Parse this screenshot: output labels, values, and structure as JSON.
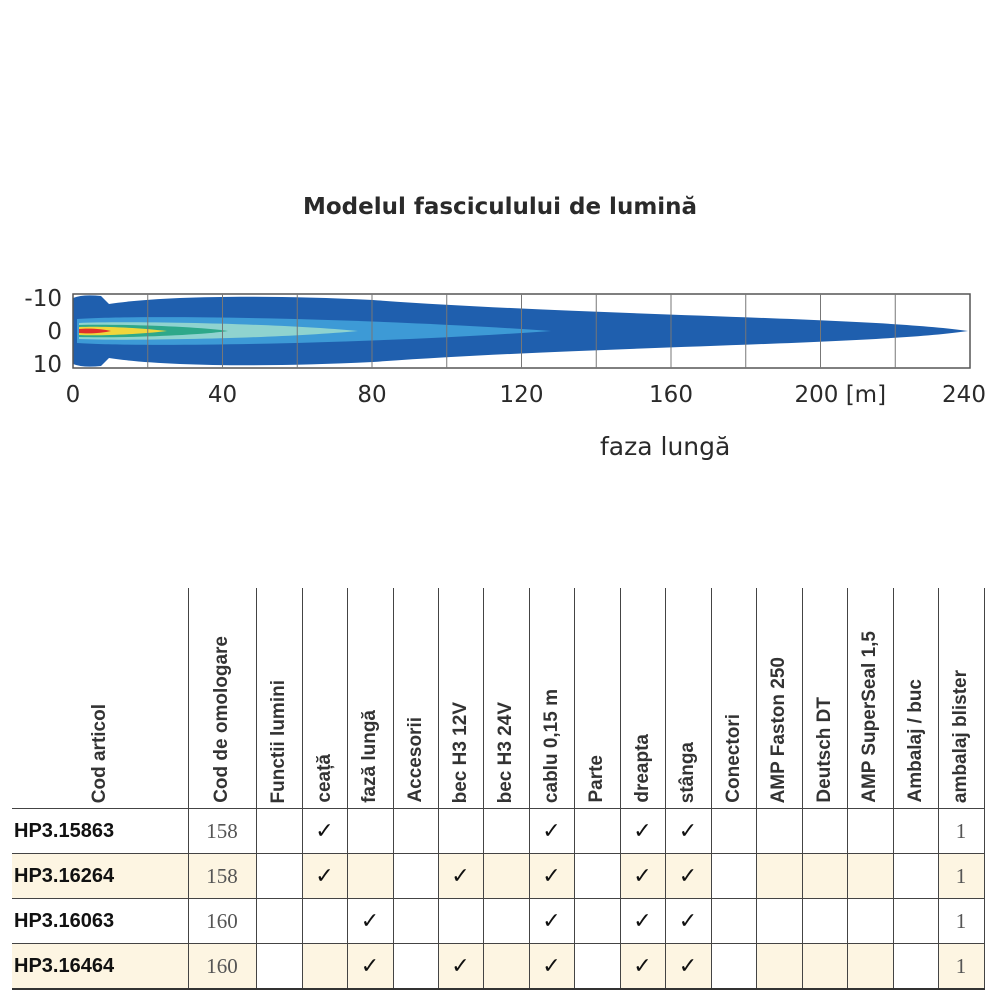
{
  "beam": {
    "title": "Modelul fasciculului de lumină",
    "subtitle": "faza lungă",
    "y_tick_labels": [
      "-10",
      "0",
      "10"
    ],
    "x_tick_labels": [
      "0",
      "40",
      "80",
      "120",
      "160",
      "200 [m]",
      "240"
    ],
    "x_range": [
      0,
      240
    ],
    "y_range": [
      -10,
      10
    ],
    "colors": {
      "outer": "#1f5fae",
      "mid": "#3d9ad6",
      "inner": "#8fd3cf",
      "green": "#2ea88a",
      "yellow": "#f0d63c",
      "red": "#e0302a",
      "frame": "#555555",
      "grid": "#777777"
    }
  },
  "table": {
    "columns": [
      {
        "label": "Cod articol",
        "width": 176,
        "type": "code"
      },
      {
        "label": "Cod de omologare",
        "width": 68,
        "type": "data"
      },
      {
        "label": "Functii lumini",
        "width": 46,
        "type": "blank"
      },
      {
        "label": "ceață",
        "width": 45,
        "type": "data"
      },
      {
        "label": "fază lungă",
        "width": 46,
        "type": "data"
      },
      {
        "label": "Accesorii",
        "width": 45,
        "type": "blank"
      },
      {
        "label": "bec H3 12V",
        "width": 45,
        "type": "data"
      },
      {
        "label": "bec H3 24V",
        "width": 46,
        "type": "data"
      },
      {
        "label": "cablu 0,15 m",
        "width": 45,
        "type": "data"
      },
      {
        "label": "Parte",
        "width": 46,
        "type": "blank"
      },
      {
        "label": "dreapta",
        "width": 45,
        "type": "data"
      },
      {
        "label": "stânga",
        "width": 46,
        "type": "data"
      },
      {
        "label": "Conectori",
        "width": 45,
        "type": "blank"
      },
      {
        "label": "AMP Faston 250",
        "width": 46,
        "type": "data"
      },
      {
        "label": "Deutsch DT",
        "width": 45,
        "type": "data"
      },
      {
        "label": "AMP SuperSeal 1,5",
        "width": 46,
        "type": "data"
      },
      {
        "label": "Ambalaj / buc",
        "width": 45,
        "type": "blank"
      },
      {
        "label": "ambalaj blister",
        "width": 46,
        "type": "data"
      }
    ],
    "rows": [
      {
        "shaded": false,
        "cells": [
          "HP3.15863",
          "158",
          "",
          "✓",
          "",
          "",
          "",
          "",
          "✓",
          "",
          "✓",
          "✓",
          "",
          "",
          "",
          "",
          "",
          "1"
        ]
      },
      {
        "shaded": true,
        "cells": [
          "HP3.16264",
          "158",
          "",
          "✓",
          "",
          "",
          "✓",
          "",
          "✓",
          "",
          "✓",
          "✓",
          "",
          "",
          "",
          "",
          "",
          "1"
        ]
      },
      {
        "shaded": false,
        "cells": [
          "HP3.16063",
          "160",
          "",
          "",
          "✓",
          "",
          "",
          "",
          "✓",
          "",
          "✓",
          "✓",
          "",
          "",
          "",
          "",
          "",
          "1"
        ]
      },
      {
        "shaded": true,
        "cells": [
          "HP3.16464",
          "160",
          "",
          "",
          "✓",
          "",
          "✓",
          "",
          "✓",
          "",
          "✓",
          "✓",
          "",
          "",
          "",
          "",
          "",
          "1"
        ]
      }
    ]
  }
}
